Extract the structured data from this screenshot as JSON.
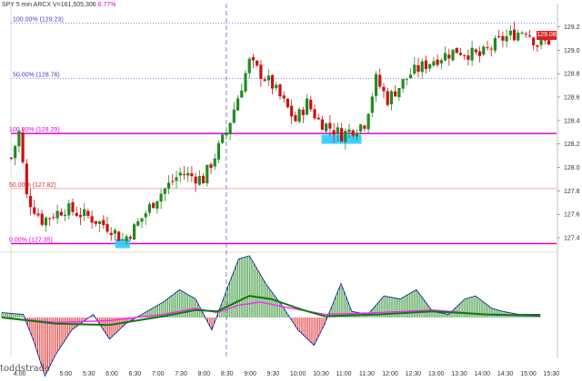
{
  "header": {
    "symbol": "SPY",
    "interval": "5 min",
    "exchange": "ARCX",
    "volume": "V=161,505,306",
    "change": "0.77%"
  },
  "current_price": "129.08",
  "watermark": "toddstrade",
  "colors": {
    "up_candle": "#228b22",
    "down_candle": "#cc1111",
    "fib_line": "#dd00dd",
    "highlight": "#33ccff",
    "signal_line": "#ff22ff",
    "osc_line": "#117711",
    "hist_up": "#228b22",
    "hist_down": "#dd2222"
  },
  "fib_levels": [
    {
      "label": "100.00% (129.23)",
      "value": 129.23,
      "style": "dotted-blue"
    },
    {
      "label": "50.00% (128.76)",
      "value": 128.76,
      "style": "dotted-blue"
    },
    {
      "label": "100.00% (128.29)",
      "value": 128.29,
      "style": "solid-magenta"
    },
    {
      "label": "50.00% (127.82)",
      "value": 127.82,
      "style": "thin-pink"
    },
    {
      "label": "0.00% (127.35)",
      "value": 127.35,
      "style": "solid-magenta"
    }
  ],
  "chart_data": {
    "type": "candlestick",
    "y_axis": {
      "ticks": [
        "129.2",
        "129.0",
        "128.8",
        "128.6",
        "128.4",
        "128.2",
        "128.0",
        "127.8",
        "127.6",
        "127.4"
      ],
      "range": [
        127.3,
        129.32
      ]
    },
    "x_axis": {
      "ticks": [
        "4:00",
        "5:00",
        "5:30",
        "6:00",
        "6:30",
        "7:00",
        "7:30",
        "8:00",
        "8:30",
        "9:00",
        "9:30",
        "10:00",
        "10:30",
        "11:00",
        "11:30",
        "12:00",
        "12:30",
        "13:00",
        "13:30",
        "14:00",
        "14:30",
        "15:00",
        "15:30"
      ]
    },
    "session_markers": [
      "8:30"
    ],
    "highlights": [
      {
        "time": "6:15",
        "price": 127.35
      },
      {
        "time": "11:00",
        "price": 128.24
      }
    ],
    "price_path": [
      {
        "t": "3:50",
        "p": 128.08
      },
      {
        "t": "4:00",
        "p": 128.3
      },
      {
        "t": "4:10",
        "p": 127.75
      },
      {
        "t": "4:30",
        "p": 127.55
      },
      {
        "t": "5:00",
        "p": 127.65
      },
      {
        "t": "5:30",
        "p": 127.58
      },
      {
        "t": "6:00",
        "p": 127.48
      },
      {
        "t": "6:15",
        "p": 127.38
      },
      {
        "t": "6:30",
        "p": 127.48
      },
      {
        "t": "7:00",
        "p": 127.75
      },
      {
        "t": "7:30",
        "p": 127.95
      },
      {
        "t": "8:00",
        "p": 127.9
      },
      {
        "t": "8:30",
        "p": 128.3
      },
      {
        "t": "8:45",
        "p": 128.6
      },
      {
        "t": "9:00",
        "p": 128.9
      },
      {
        "t": "9:30",
        "p": 128.7
      },
      {
        "t": "10:00",
        "p": 128.4
      },
      {
        "t": "10:15",
        "p": 128.55
      },
      {
        "t": "10:30",
        "p": 128.4
      },
      {
        "t": "11:00",
        "p": 128.28
      },
      {
        "t": "11:30",
        "p": 128.38
      },
      {
        "t": "11:45",
        "p": 128.75
      },
      {
        "t": "12:00",
        "p": 128.58
      },
      {
        "t": "12:30",
        "p": 128.8
      },
      {
        "t": "13:00",
        "p": 128.92
      },
      {
        "t": "13:30",
        "p": 129.0
      },
      {
        "t": "14:00",
        "p": 128.95
      },
      {
        "t": "14:30",
        "p": 129.1
      },
      {
        "t": "15:00",
        "p": 129.18
      },
      {
        "t": "15:15",
        "p": 129.05
      },
      {
        "t": "15:30",
        "p": 129.08
      }
    ],
    "oscillator": {
      "type": "histogram",
      "series": [
        {
          "name": "histogram",
          "points": [
            [
              0,
              0.08
            ],
            [
              0.04,
              0.05
            ],
            [
              0.06,
              -0.4
            ],
            [
              0.08,
              -0.95
            ],
            [
              0.1,
              -0.6
            ],
            [
              0.13,
              -0.2
            ],
            [
              0.17,
              0.05
            ],
            [
              0.2,
              -0.35
            ],
            [
              0.23,
              -0.1
            ],
            [
              0.26,
              0.05
            ],
            [
              0.3,
              0.25
            ],
            [
              0.33,
              0.45
            ],
            [
              0.36,
              0.3
            ],
            [
              0.39,
              -0.2
            ],
            [
              0.42,
              0.5
            ],
            [
              0.44,
              0.95
            ],
            [
              0.46,
              1.0
            ],
            [
              0.49,
              0.55
            ],
            [
              0.52,
              0.2
            ],
            [
              0.55,
              -0.2
            ],
            [
              0.58,
              -0.45
            ],
            [
              0.6,
              -0.1
            ],
            [
              0.63,
              0.55
            ],
            [
              0.65,
              0.1
            ],
            [
              0.68,
              0.05
            ],
            [
              0.71,
              0.35
            ],
            [
              0.74,
              0.3
            ],
            [
              0.77,
              0.45
            ],
            [
              0.8,
              0.1
            ],
            [
              0.83,
              0.05
            ],
            [
              0.86,
              0.3
            ],
            [
              0.88,
              0.35
            ],
            [
              0.91,
              0.15
            ],
            [
              0.93,
              0.1
            ],
            [
              0.96,
              0.05
            ],
            [
              1,
              0.05
            ]
          ]
        },
        {
          "name": "signal",
          "points": [
            [
              0,
              0.0
            ],
            [
              0.1,
              -0.08
            ],
            [
              0.2,
              -0.05
            ],
            [
              0.3,
              0.05
            ],
            [
              0.36,
              0.15
            ],
            [
              0.4,
              0.08
            ],
            [
              0.44,
              0.2
            ],
            [
              0.48,
              0.25
            ],
            [
              0.52,
              0.18
            ],
            [
              0.6,
              0.05
            ],
            [
              0.7,
              0.08
            ],
            [
              0.8,
              0.12
            ],
            [
              0.9,
              0.05
            ],
            [
              1,
              0.02
            ]
          ]
        },
        {
          "name": "oscillator",
          "points": [
            [
              0,
              0.0
            ],
            [
              0.1,
              -0.1
            ],
            [
              0.2,
              -0.12
            ],
            [
              0.3,
              0.02
            ],
            [
              0.36,
              0.12
            ],
            [
              0.4,
              0.1
            ],
            [
              0.46,
              0.35
            ],
            [
              0.5,
              0.3
            ],
            [
              0.56,
              0.12
            ],
            [
              0.6,
              0.02
            ],
            [
              0.7,
              0.05
            ],
            [
              0.8,
              0.1
            ],
            [
              0.9,
              0.05
            ],
            [
              1,
              0.03
            ]
          ]
        }
      ]
    }
  }
}
